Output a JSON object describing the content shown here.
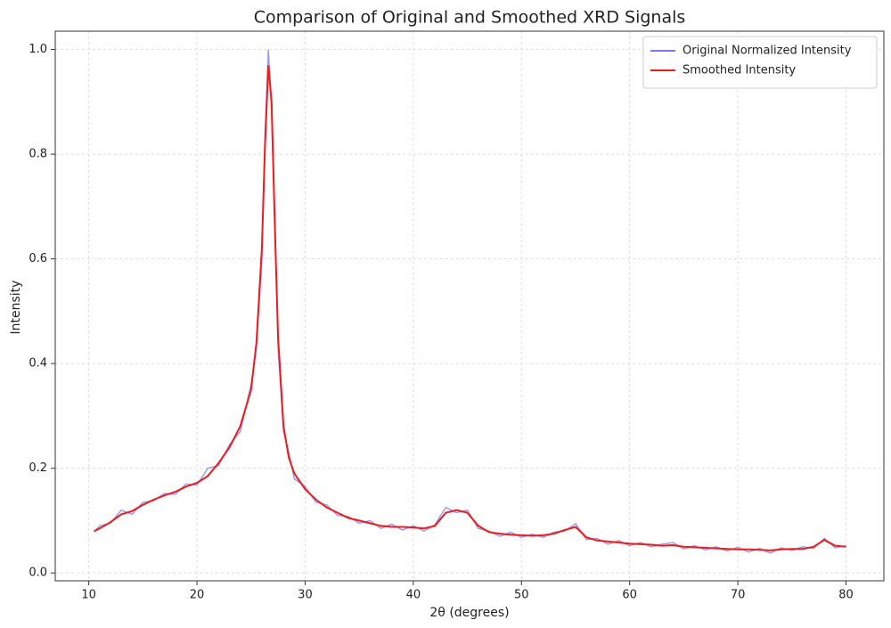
{
  "chart_data": {
    "type": "line",
    "title": "Comparison of Original and Smoothed XRD Signals",
    "x_label": "2θ (degrees)",
    "y_label": "Intensity",
    "x": [
      10.5,
      11,
      12,
      13,
      14,
      15,
      16,
      17,
      18,
      19,
      20,
      21,
      22,
      23,
      24,
      25,
      25.5,
      26,
      26.3,
      26.6,
      26.9,
      27.2,
      27.5,
      28,
      28.5,
      29,
      30,
      31,
      32,
      33,
      34,
      35,
      36,
      37,
      38,
      39,
      40,
      41,
      42,
      43,
      44,
      45,
      46,
      47,
      48,
      49,
      50,
      51,
      52,
      53,
      54,
      55,
      56,
      57,
      58,
      59,
      60,
      61,
      62,
      63,
      64,
      65,
      66,
      67,
      68,
      69,
      70,
      71,
      72,
      73,
      74,
      75,
      76,
      77,
      78,
      79,
      80
    ],
    "series": [
      {
        "name": "Original Normalized Intensity",
        "color": "#7a7af0",
        "values": [
          0.078,
          0.09,
          0.095,
          0.12,
          0.112,
          0.135,
          0.138,
          0.152,
          0.15,
          0.17,
          0.168,
          0.2,
          0.205,
          0.245,
          0.27,
          0.36,
          0.43,
          0.6,
          0.84,
          1.0,
          0.88,
          0.68,
          0.43,
          0.27,
          0.23,
          0.18,
          0.165,
          0.135,
          0.13,
          0.11,
          0.108,
          0.095,
          0.1,
          0.085,
          0.093,
          0.082,
          0.09,
          0.08,
          0.092,
          0.125,
          0.115,
          0.12,
          0.085,
          0.08,
          0.07,
          0.078,
          0.068,
          0.074,
          0.068,
          0.078,
          0.08,
          0.094,
          0.064,
          0.066,
          0.055,
          0.062,
          0.052,
          0.058,
          0.05,
          0.055,
          0.058,
          0.046,
          0.052,
          0.044,
          0.05,
          0.042,
          0.049,
          0.04,
          0.047,
          0.038,
          0.048,
          0.043,
          0.05,
          0.047,
          0.066,
          0.048,
          0.052
        ]
      },
      {
        "name": "Smoothed Intensity",
        "color": "#ee1c1c",
        "values": [
          0.08,
          0.085,
          0.097,
          0.112,
          0.118,
          0.13,
          0.14,
          0.148,
          0.155,
          0.165,
          0.172,
          0.185,
          0.21,
          0.24,
          0.28,
          0.35,
          0.44,
          0.62,
          0.82,
          0.97,
          0.9,
          0.66,
          0.45,
          0.28,
          0.22,
          0.19,
          0.16,
          0.14,
          0.125,
          0.115,
          0.105,
          0.1,
          0.095,
          0.09,
          0.088,
          0.088,
          0.087,
          0.085,
          0.09,
          0.115,
          0.12,
          0.115,
          0.09,
          0.078,
          0.075,
          0.073,
          0.072,
          0.071,
          0.072,
          0.075,
          0.082,
          0.088,
          0.068,
          0.062,
          0.06,
          0.058,
          0.056,
          0.055,
          0.054,
          0.052,
          0.053,
          0.05,
          0.049,
          0.048,
          0.047,
          0.046,
          0.045,
          0.045,
          0.044,
          0.043,
          0.045,
          0.046,
          0.046,
          0.05,
          0.063,
          0.052,
          0.05
        ]
      }
    ],
    "xlim": [
      6.9,
      83.5
    ],
    "ylim": [
      -0.015,
      1.035
    ],
    "xticks": [
      10,
      20,
      30,
      40,
      50,
      60,
      70,
      80
    ],
    "yticks": [
      {
        "value": 0,
        "label": "0.0"
      },
      0.2,
      0.4,
      0.6,
      0.8,
      {
        "value": 1,
        "label": "1.0"
      }
    ],
    "grid": true,
    "legend": "upper right"
  }
}
